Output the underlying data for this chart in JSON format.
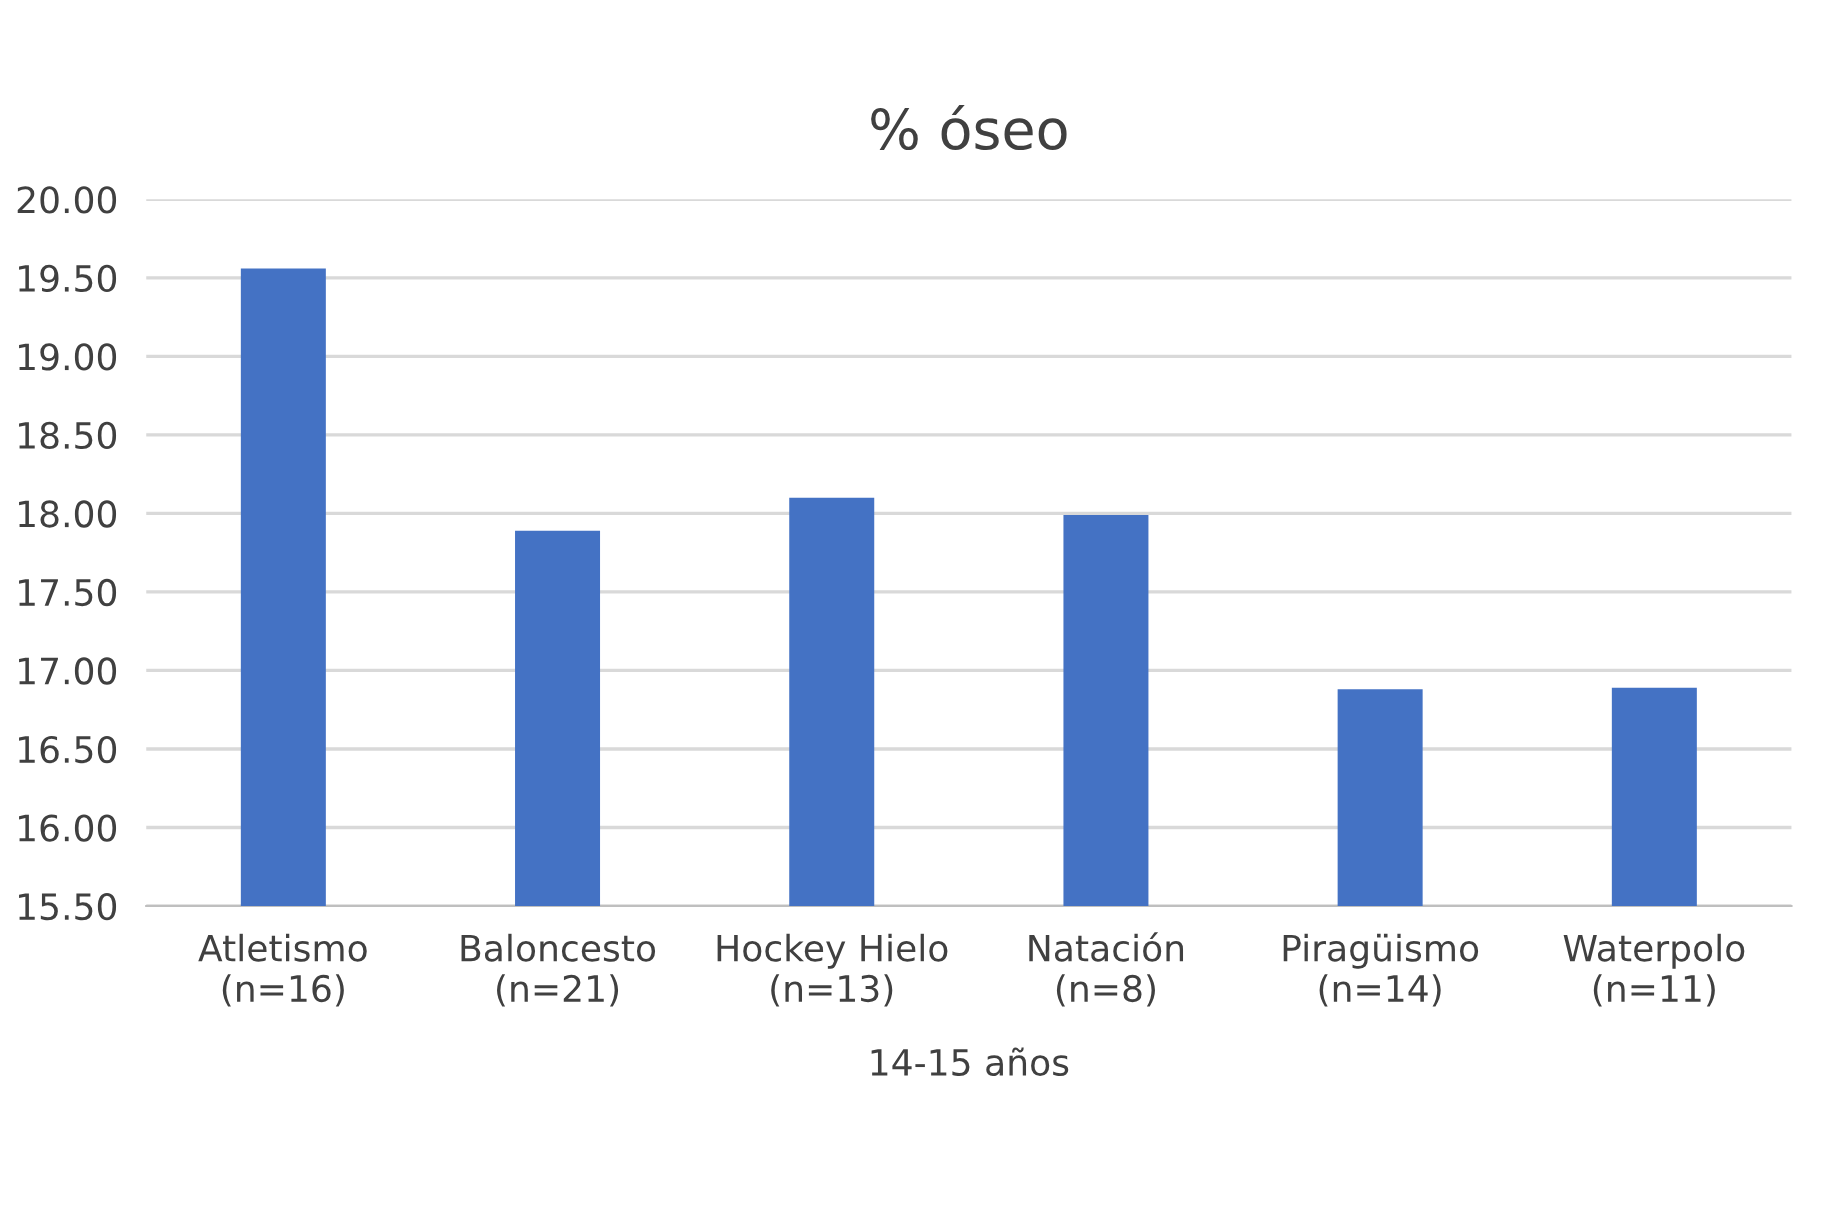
{
  "chart_data": {
    "type": "bar",
    "title": "% óseo",
    "xlabel": "14-15 años",
    "categories": [
      "Atletismo\n(n=16)",
      "Baloncesto\n(n=21)",
      "Hockey Hielo\n(n=13)",
      "Natación\n(n=8)",
      "Piragüismo\n(n=14)",
      "Waterpolo\n(n=11)"
    ],
    "values": [
      19.56,
      17.89,
      18.1,
      17.99,
      16.88,
      16.89
    ],
    "color": "#4472c4",
    "ylim": [
      15.5,
      20.0
    ],
    "yticks": [
      {
        "value": 15.5,
        "label": "15.50"
      },
      {
        "value": 16.0,
        "label": "16.00"
      },
      {
        "value": 16.5,
        "label": "16.50"
      },
      {
        "value": 17.0,
        "label": "17.00"
      },
      {
        "value": 17.5,
        "label": "17.50"
      },
      {
        "value": 18.0,
        "label": "18.00"
      },
      {
        "value": 18.5,
        "label": "18.50"
      },
      {
        "value": 19.0,
        "label": "19.00"
      },
      {
        "value": 19.5,
        "label": "19.50"
      },
      {
        "value": 20.0,
        "label": "20.00"
      }
    ],
    "grid": "y"
  }
}
